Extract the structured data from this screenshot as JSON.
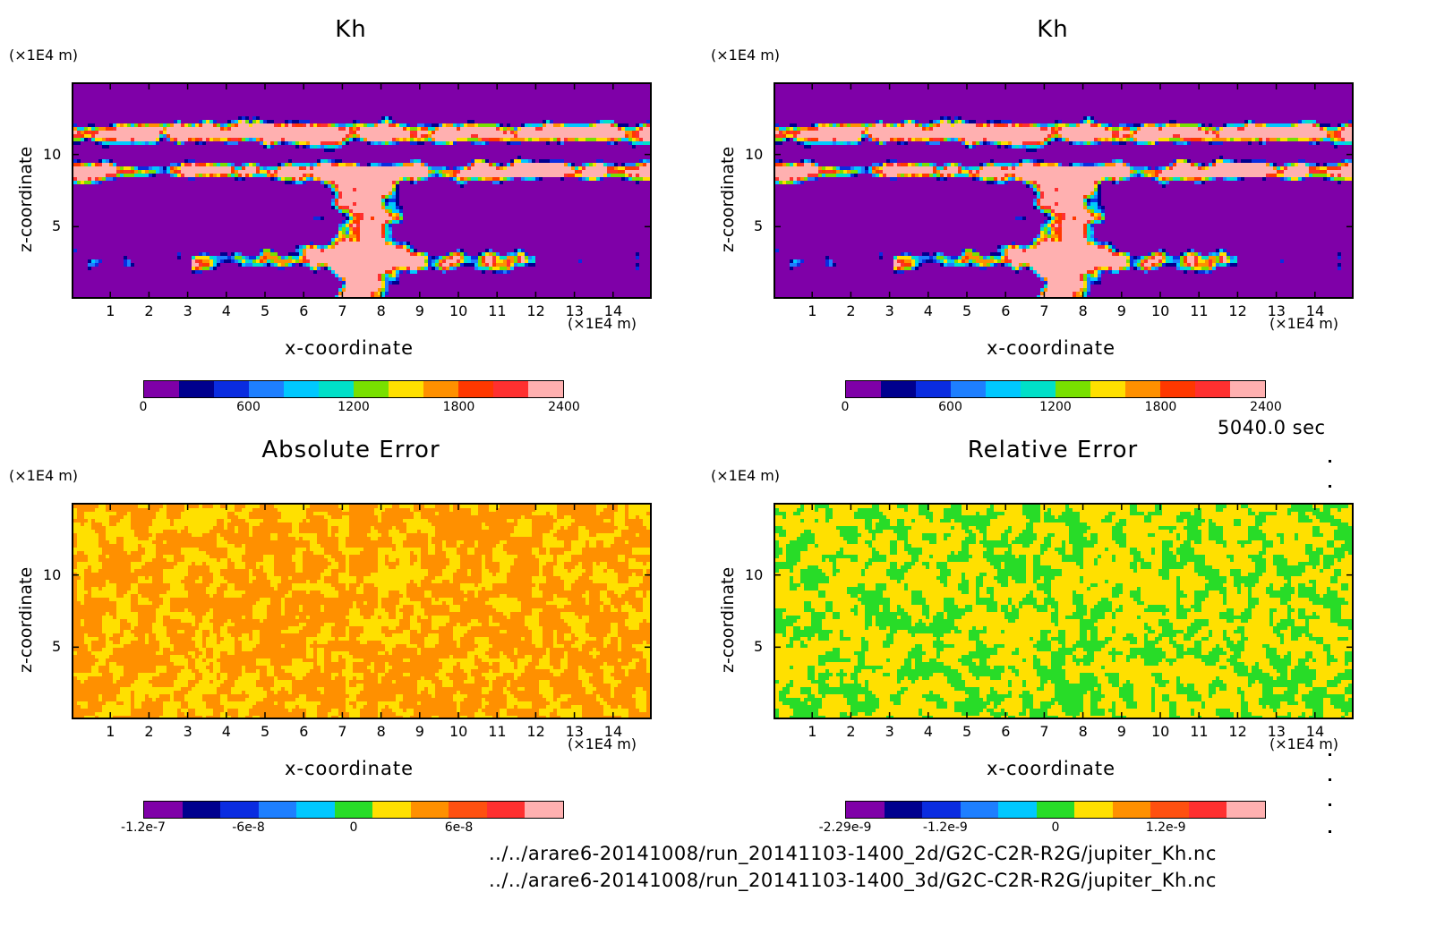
{
  "time_label": "5040.0 sec",
  "files": [
    "../../arare6-20141008/run_20141103-1400_2d/G2C-C2R-R2G/jupiter_Kh.nc",
    "../../arare6-20141008/run_20141103-1400_3d/G2C-C2R-R2G/jupiter_Kh.nc"
  ],
  "chart_data": [
    {
      "type": "heatmap",
      "title": "Kh",
      "xlabel": "x-coordinate",
      "ylabel": "z-coordinate",
      "x_unit": "(×1E4 m)",
      "y_unit": "(×1E4 m)",
      "xlim": [
        0,
        15
      ],
      "ylim": [
        0,
        15
      ],
      "x_ticks": [
        1,
        2,
        3,
        4,
        5,
        6,
        7,
        8,
        9,
        10,
        11,
        12,
        13,
        14
      ],
      "y_ticks": [
        5,
        10
      ],
      "colorbar": {
        "colors": [
          "#7f00a8",
          "#00008e",
          "#0a2ce0",
          "#1e7fff",
          "#00c8ff",
          "#00e0c8",
          "#78e000",
          "#ffe000",
          "#ff9000",
          "#ff3800",
          "#ff3030",
          "#ffb0b0"
        ],
        "labels": [
          "0",
          "600",
          "1200",
          "1800",
          "2400"
        ],
        "label_values": [
          0,
          600,
          1200,
          1800,
          2400
        ],
        "range": [
          0,
          2400
        ]
      },
      "field": "Kh"
    },
    {
      "type": "heatmap",
      "title": "Kh",
      "xlabel": "x-coordinate",
      "ylabel": "z-coordinate",
      "x_unit": "(×1E4 m)",
      "y_unit": "(×1E4 m)",
      "xlim": [
        0,
        15
      ],
      "ylim": [
        0,
        15
      ],
      "x_ticks": [
        1,
        2,
        3,
        4,
        5,
        6,
        7,
        8,
        9,
        10,
        11,
        12,
        13,
        14
      ],
      "y_ticks": [
        5,
        10
      ],
      "colorbar": {
        "colors": [
          "#7f00a8",
          "#00008e",
          "#0a2ce0",
          "#1e7fff",
          "#00c8ff",
          "#00e0c8",
          "#78e000",
          "#ffe000",
          "#ff9000",
          "#ff3800",
          "#ff3030",
          "#ffb0b0"
        ],
        "labels": [
          "0",
          "600",
          "1200",
          "1800",
          "2400"
        ],
        "label_values": [
          0,
          600,
          1200,
          1800,
          2400
        ],
        "range": [
          0,
          2400
        ]
      },
      "field": "Kh"
    },
    {
      "type": "heatmap",
      "title": "Absolute Error",
      "xlabel": "x-coordinate",
      "ylabel": "z-coordinate",
      "x_unit": "(×1E4 m)",
      "y_unit": "(×1E4 m)",
      "xlim": [
        0,
        15
      ],
      "ylim": [
        0,
        15
      ],
      "x_ticks": [
        1,
        2,
        3,
        4,
        5,
        6,
        7,
        8,
        9,
        10,
        11,
        12,
        13,
        14
      ],
      "y_ticks": [
        5,
        10
      ],
      "colorbar": {
        "colors": [
          "#7f00a8",
          "#00008e",
          "#0a2ce0",
          "#1e7fff",
          "#00c8ff",
          "#28dc28",
          "#ffe000",
          "#ff9000",
          "#ff5010",
          "#ff3030",
          "#ffb0b0"
        ],
        "labels": [
          "-1.2e-7",
          "-6e-8",
          "0",
          "6e-8"
        ],
        "label_values": [
          -1.2e-07,
          -6e-08,
          0,
          6e-08
        ],
        "range": [
          -1.2e-07,
          1.2e-07
        ]
      },
      "field": "abs_error",
      "dominant_colors": [
        "#ff9000",
        "#ffe000"
      ]
    },
    {
      "type": "heatmap",
      "title": "Relative Error",
      "xlabel": "x-coordinate",
      "ylabel": "z-coordinate",
      "x_unit": "(×1E4 m)",
      "y_unit": "(×1E4 m)",
      "xlim": [
        0,
        15
      ],
      "ylim": [
        0,
        15
      ],
      "x_ticks": [
        1,
        2,
        3,
        4,
        5,
        6,
        7,
        8,
        9,
        10,
        11,
        12,
        13,
        14
      ],
      "y_ticks": [
        5,
        10
      ],
      "colorbar": {
        "colors": [
          "#7f00a8",
          "#00008e",
          "#0a2ce0",
          "#1e7fff",
          "#00c8ff",
          "#28dc28",
          "#ffe000",
          "#ff9000",
          "#ff5010",
          "#ff3030",
          "#ffb0b0"
        ],
        "labels": [
          "-2.29e-9",
          "-1.2e-9",
          "0",
          "1.2e-9"
        ],
        "label_values": [
          -2.29e-09,
          -1.2e-09,
          0,
          1.2e-09
        ],
        "range": [
          -2.29e-09,
          2.29e-09
        ]
      },
      "field": "rel_error",
      "dominant_colors": [
        "#ffe000",
        "#28dc28"
      ]
    }
  ]
}
